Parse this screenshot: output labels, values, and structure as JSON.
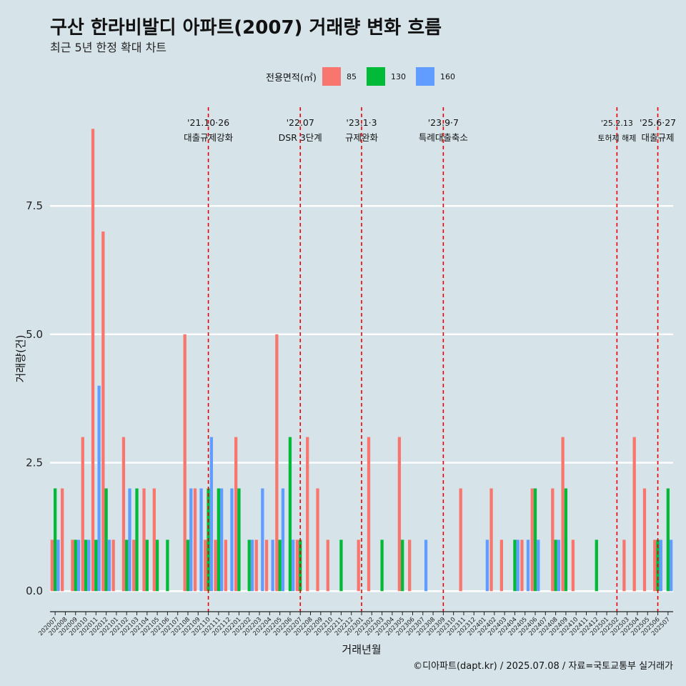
{
  "title": "구산 한라비발디 아파트(2007) 거래량 변화 흐름",
  "subtitle": "최근 5년 한정 확대 차트",
  "legend": {
    "title": "전용면적(㎡)",
    "items": [
      {
        "label": "85",
        "color": "#f8766d"
      },
      {
        "label": "130",
        "color": "#00ba38"
      },
      {
        "label": "160",
        "color": "#619cff"
      }
    ]
  },
  "caption": "©디아파트(dapt.kr) / 2025.07.08 / 자료=국토교통부 실거래가",
  "chart_data": {
    "type": "bar",
    "xlabel": "거래년월",
    "ylabel": "거래량(건)",
    "ylim": [
      -0.4,
      9.7
    ],
    "yticks": [
      0.0,
      2.5,
      5.0,
      7.5
    ],
    "ytick_labels": [
      "0.0",
      "2.5",
      "5.0",
      "7.5"
    ],
    "grid": "horizontal",
    "categories": [
      "202007",
      "202008",
      "202009",
      "202010",
      "202011",
      "202012",
      "202101",
      "202102",
      "202103",
      "202104",
      "202105",
      "202106",
      "202107",
      "202108",
      "202109",
      "202110",
      "202111",
      "202112",
      "202201",
      "202202",
      "202203",
      "202204",
      "202205",
      "202206",
      "202207",
      "202208",
      "202209",
      "202210",
      "202211",
      "202212",
      "202301",
      "202302",
      "202303",
      "202304",
      "202305",
      "202306",
      "202307",
      "202308",
      "202309",
      "202310",
      "202311",
      "202312",
      "202401",
      "202402",
      "202403",
      "202404",
      "202405",
      "202406",
      "202407",
      "202408",
      "202409",
      "202410",
      "202411",
      "202412",
      "202501",
      "202502",
      "202503",
      "202504",
      "202505",
      "202506",
      "202507"
    ],
    "series": [
      {
        "name": "85",
        "color": "#f8766d",
        "values": [
          1,
          2,
          1,
          3,
          9,
          7,
          1,
          3,
          1,
          2,
          2,
          0,
          0,
          5,
          2,
          1,
          1,
          1,
          3,
          0,
          1,
          1,
          5,
          0,
          1,
          3,
          2,
          1,
          0,
          0,
          1,
          3,
          0,
          0,
          3,
          1,
          0,
          0,
          0,
          0,
          2,
          0,
          0,
          2,
          1,
          0,
          1,
          2,
          0,
          2,
          3,
          1,
          0,
          0,
          0,
          0,
          1,
          3,
          2,
          1,
          0
        ]
      },
      {
        "name": "130",
        "color": "#00ba38",
        "values": [
          2,
          0,
          1,
          1,
          1,
          2,
          0,
          1,
          2,
          1,
          1,
          1,
          0,
          1,
          0,
          2,
          2,
          0,
          2,
          1,
          0,
          0,
          1,
          3,
          1,
          0,
          0,
          0,
          1,
          0,
          0,
          0,
          1,
          0,
          1,
          0,
          0,
          0,
          0,
          0,
          0,
          0,
          0,
          0,
          0,
          1,
          0,
          2,
          0,
          1,
          2,
          0,
          0,
          1,
          0,
          0,
          0,
          0,
          0,
          1,
          2
        ]
      },
      {
        "name": "160",
        "color": "#619cff",
        "values": [
          1,
          0,
          1,
          1,
          4,
          1,
          0,
          2,
          0,
          0,
          0,
          0,
          0,
          2,
          2,
          3,
          2,
          2,
          0,
          1,
          2,
          1,
          2,
          1,
          0,
          0,
          0,
          0,
          0,
          0,
          0,
          0,
          0,
          0,
          0,
          0,
          1,
          0,
          0,
          0,
          0,
          0,
          1,
          0,
          0,
          1,
          1,
          1,
          0,
          1,
          0,
          0,
          0,
          0,
          0,
          0,
          0,
          0,
          0,
          1,
          1
        ]
      }
    ],
    "events": [
      {
        "date": "'21.10·26",
        "label": "대출규제강화",
        "at": "202110"
      },
      {
        "date": "'22.07",
        "label": "DSR 3단계",
        "at": "202207"
      },
      {
        "date": "'23.1·3",
        "label": "규제완화",
        "at": "202301"
      },
      {
        "date": "'23.9·7",
        "label": "특례대출축소",
        "at": "202309"
      },
      {
        "date": "'25.2.13",
        "label": "토허제 해제",
        "at": "202502"
      },
      {
        "date": "'25.6·27",
        "label": "대출규제",
        "at": "202506"
      }
    ]
  }
}
